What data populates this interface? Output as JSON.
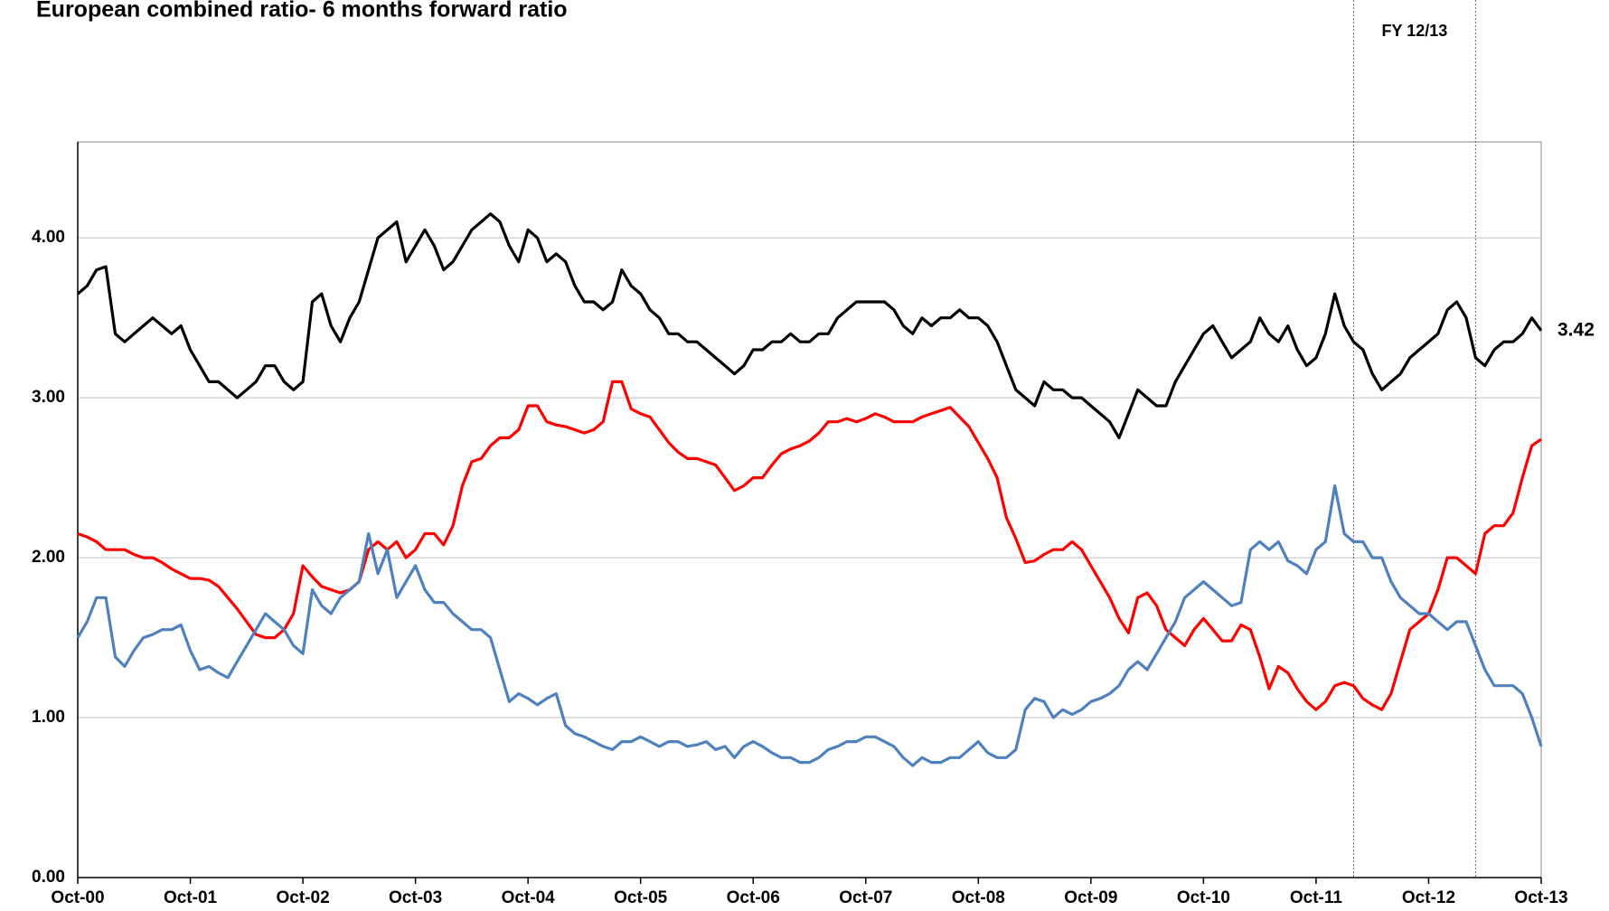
{
  "chart_data": {
    "type": "line",
    "title": "European combined ratio- 6 months forward ratio",
    "x": [
      "2000-10",
      "2000-11",
      "2000-12",
      "2001-01",
      "2001-02",
      "2001-03",
      "2001-04",
      "2001-05",
      "2001-06",
      "2001-07",
      "2001-08",
      "2001-09",
      "2001-10",
      "2001-11",
      "2001-12",
      "2002-01",
      "2002-02",
      "2002-03",
      "2002-04",
      "2002-05",
      "2002-06",
      "2002-07",
      "2002-08",
      "2002-09",
      "2002-10",
      "2002-11",
      "2002-12",
      "2003-01",
      "2003-02",
      "2003-03",
      "2003-04",
      "2003-05",
      "2003-06",
      "2003-07",
      "2003-08",
      "2003-09",
      "2003-10",
      "2003-11",
      "2003-12",
      "2004-01",
      "2004-02",
      "2004-03",
      "2004-04",
      "2004-05",
      "2004-06",
      "2004-07",
      "2004-08",
      "2004-09",
      "2004-10",
      "2004-11",
      "2004-12",
      "2005-01",
      "2005-02",
      "2005-03",
      "2005-04",
      "2005-05",
      "2005-06",
      "2005-07",
      "2005-08",
      "2005-09",
      "2005-10",
      "2005-11",
      "2005-12",
      "2006-01",
      "2006-02",
      "2006-03",
      "2006-04",
      "2006-05",
      "2006-06",
      "2006-07",
      "2006-08",
      "2006-09",
      "2006-10",
      "2006-11",
      "2006-12",
      "2007-01",
      "2007-02",
      "2007-03",
      "2007-04",
      "2007-05",
      "2007-06",
      "2007-07",
      "2007-08",
      "2007-09",
      "2007-10",
      "2007-11",
      "2007-12",
      "2008-01",
      "2008-02",
      "2008-03",
      "2008-04",
      "2008-05",
      "2008-06",
      "2008-07",
      "2008-08",
      "2008-09",
      "2008-10",
      "2008-11",
      "2008-12",
      "2009-01",
      "2009-02",
      "2009-03",
      "2009-04",
      "2009-05",
      "2009-06",
      "2009-07",
      "2009-08",
      "2009-09",
      "2009-10",
      "2009-11",
      "2009-12",
      "2010-01",
      "2010-02",
      "2010-03",
      "2010-04",
      "2010-05",
      "2010-06",
      "2010-07",
      "2010-08",
      "2010-09",
      "2010-10",
      "2010-11",
      "2010-12",
      "2011-01",
      "2011-02",
      "2011-03",
      "2011-04",
      "2011-05",
      "2011-06",
      "2011-07",
      "2011-08",
      "2011-09",
      "2011-10",
      "2011-11",
      "2011-12",
      "2012-01",
      "2012-02",
      "2012-03",
      "2012-04",
      "2012-05",
      "2012-06",
      "2012-07",
      "2012-08",
      "2012-09",
      "2012-10",
      "2012-11",
      "2012-12",
      "2013-01",
      "2013-02",
      "2013-03",
      "2013-04",
      "2013-05",
      "2013-06",
      "2013-07",
      "2013-08",
      "2013-09",
      "2013-10"
    ],
    "series": [
      {
        "color": "#000000",
        "end_label": "3.42",
        "values": [
          3.65,
          3.7,
          3.8,
          3.82,
          3.4,
          3.35,
          3.4,
          3.45,
          3.5,
          3.45,
          3.4,
          3.45,
          3.3,
          3.2,
          3.1,
          3.1,
          3.05,
          3.0,
          3.05,
          3.1,
          3.2,
          3.2,
          3.1,
          3.05,
          3.1,
          3.6,
          3.65,
          3.45,
          3.35,
          3.5,
          3.6,
          3.8,
          4.0,
          4.05,
          4.1,
          3.85,
          3.95,
          4.05,
          3.95,
          3.8,
          3.85,
          3.95,
          4.05,
          4.1,
          4.15,
          4.1,
          3.95,
          3.85,
          4.05,
          4.0,
          3.85,
          3.9,
          3.85,
          3.7,
          3.6,
          3.6,
          3.55,
          3.6,
          3.8,
          3.7,
          3.65,
          3.55,
          3.5,
          3.4,
          3.4,
          3.35,
          3.35,
          3.3,
          3.25,
          3.2,
          3.15,
          3.2,
          3.3,
          3.3,
          3.35,
          3.35,
          3.4,
          3.35,
          3.35,
          3.4,
          3.4,
          3.5,
          3.55,
          3.6,
          3.6,
          3.6,
          3.6,
          3.55,
          3.45,
          3.4,
          3.5,
          3.45,
          3.5,
          3.5,
          3.55,
          3.5,
          3.5,
          3.45,
          3.35,
          3.2,
          3.05,
          3.0,
          2.95,
          3.1,
          3.05,
          3.05,
          3.0,
          3.0,
          2.95,
          2.9,
          2.85,
          2.75,
          2.9,
          3.05,
          3.0,
          2.95,
          2.95,
          3.1,
          3.2,
          3.3,
          3.4,
          3.45,
          3.35,
          3.25,
          3.3,
          3.35,
          3.5,
          3.4,
          3.35,
          3.45,
          3.3,
          3.2,
          3.25,
          3.4,
          3.65,
          3.45,
          3.35,
          3.3,
          3.15,
          3.05,
          3.1,
          3.15,
          3.25,
          3.3,
          3.35,
          3.4,
          3.55,
          3.6,
          3.5,
          3.25,
          3.2,
          3.3,
          3.35,
          3.35,
          3.4,
          3.5,
          3.42
        ]
      },
      {
        "color": "#ff0000",
        "values": [
          2.15,
          2.13,
          2.1,
          2.05,
          2.05,
          2.05,
          2.02,
          2.0,
          2.0,
          1.97,
          1.93,
          1.9,
          1.87,
          1.87,
          1.86,
          1.82,
          1.75,
          1.68,
          1.6,
          1.52,
          1.5,
          1.5,
          1.55,
          1.65,
          1.95,
          1.88,
          1.82,
          1.8,
          1.78,
          1.8,
          1.85,
          2.05,
          2.1,
          2.05,
          2.1,
          2.0,
          2.05,
          2.15,
          2.15,
          2.08,
          2.2,
          2.45,
          2.6,
          2.62,
          2.7,
          2.75,
          2.75,
          2.8,
          2.95,
          2.95,
          2.85,
          2.83,
          2.82,
          2.8,
          2.78,
          2.8,
          2.85,
          3.1,
          3.1,
          2.93,
          2.9,
          2.88,
          2.8,
          2.72,
          2.66,
          2.62,
          2.62,
          2.6,
          2.58,
          2.5,
          2.42,
          2.45,
          2.5,
          2.5,
          2.58,
          2.65,
          2.68,
          2.7,
          2.73,
          2.78,
          2.85,
          2.85,
          2.87,
          2.85,
          2.87,
          2.9,
          2.88,
          2.85,
          2.85,
          2.85,
          2.88,
          2.9,
          2.92,
          2.94,
          2.88,
          2.82,
          2.72,
          2.62,
          2.5,
          2.25,
          2.12,
          1.97,
          1.98,
          2.02,
          2.05,
          2.05,
          2.1,
          2.05,
          1.95,
          1.85,
          1.75,
          1.62,
          1.53,
          1.75,
          1.78,
          1.7,
          1.55,
          1.5,
          1.45,
          1.55,
          1.62,
          1.55,
          1.48,
          1.48,
          1.58,
          1.55,
          1.38,
          1.18,
          1.32,
          1.28,
          1.18,
          1.1,
          1.05,
          1.1,
          1.2,
          1.22,
          1.2,
          1.12,
          1.08,
          1.05,
          1.15,
          1.35,
          1.55,
          1.6,
          1.65,
          1.8,
          2.0,
          2.0,
          1.95,
          1.9,
          2.15,
          2.2,
          2.2,
          2.28,
          2.5,
          2.7,
          2.74
        ]
      },
      {
        "color": "#4f81bd",
        "values": [
          1.5,
          1.6,
          1.75,
          1.75,
          1.38,
          1.32,
          1.42,
          1.5,
          1.52,
          1.55,
          1.55,
          1.58,
          1.42,
          1.3,
          1.32,
          1.28,
          1.25,
          1.35,
          1.45,
          1.55,
          1.65,
          1.6,
          1.55,
          1.45,
          1.4,
          1.8,
          1.7,
          1.65,
          1.75,
          1.8,
          1.85,
          2.15,
          1.9,
          2.05,
          1.75,
          1.85,
          1.95,
          1.8,
          1.72,
          1.72,
          1.65,
          1.6,
          1.55,
          1.55,
          1.5,
          1.3,
          1.1,
          1.15,
          1.12,
          1.08,
          1.12,
          1.15,
          0.95,
          0.9,
          0.88,
          0.85,
          0.82,
          0.8,
          0.85,
          0.85,
          0.88,
          0.85,
          0.82,
          0.85,
          0.85,
          0.82,
          0.83,
          0.85,
          0.8,
          0.82,
          0.75,
          0.82,
          0.85,
          0.82,
          0.78,
          0.75,
          0.75,
          0.72,
          0.72,
          0.75,
          0.8,
          0.82,
          0.85,
          0.85,
          0.88,
          0.88,
          0.85,
          0.82,
          0.75,
          0.7,
          0.75,
          0.72,
          0.72,
          0.75,
          0.75,
          0.8,
          0.85,
          0.78,
          0.75,
          0.75,
          0.8,
          1.05,
          1.12,
          1.1,
          1.0,
          1.05,
          1.02,
          1.05,
          1.1,
          1.12,
          1.15,
          1.2,
          1.3,
          1.35,
          1.3,
          1.4,
          1.5,
          1.6,
          1.75,
          1.8,
          1.85,
          1.8,
          1.75,
          1.7,
          1.72,
          2.05,
          2.1,
          2.05,
          2.1,
          1.98,
          1.95,
          1.9,
          2.05,
          2.1,
          2.45,
          2.15,
          2.1,
          2.1,
          2.0,
          2.0,
          1.85,
          1.75,
          1.7,
          1.65,
          1.65,
          1.6,
          1.55,
          1.6,
          1.6,
          1.45,
          1.3,
          1.2,
          1.2,
          1.2,
          1.15,
          1.0,
          0.82
        ]
      }
    ],
    "xlim": [
      "2000-10",
      "2013-10"
    ],
    "xticks": [
      {
        "value": "2000-10",
        "label": "Oct-00"
      },
      {
        "value": "2001-10",
        "label": "Oct-01"
      },
      {
        "value": "2002-10",
        "label": "Oct-02"
      },
      {
        "value": "2003-10",
        "label": "Oct-03"
      },
      {
        "value": "2004-10",
        "label": "Oct-04"
      },
      {
        "value": "2005-10",
        "label": "Oct-05"
      },
      {
        "value": "2006-10",
        "label": "Oct-06"
      },
      {
        "value": "2007-10",
        "label": "Oct-07"
      },
      {
        "value": "2008-10",
        "label": "Oct-08"
      },
      {
        "value": "2009-10",
        "label": "Oct-09"
      },
      {
        "value": "2010-10",
        "label": "Oct-10"
      },
      {
        "value": "2011-10",
        "label": "Oct-11"
      },
      {
        "value": "2012-10",
        "label": "Oct-12"
      },
      {
        "value": "2013-10",
        "label": "Oct-13"
      }
    ],
    "ylim": [
      0,
      4.6
    ],
    "yticks": [
      {
        "value": 0,
        "label": "0.00"
      },
      {
        "value": 1,
        "label": "1.00"
      },
      {
        "value": 2,
        "label": "2.00"
      },
      {
        "value": 3,
        "label": "3.00"
      },
      {
        "value": 4,
        "label": "4.00"
      }
    ],
    "grid": true,
    "span": {
      "label": "FY 12/13",
      "from": "2012-02",
      "to": "2013-03"
    }
  }
}
